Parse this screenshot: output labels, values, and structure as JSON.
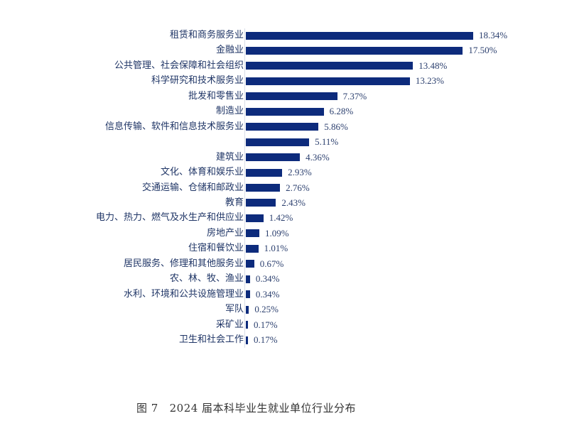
{
  "chart_data": {
    "type": "bar",
    "orientation": "horizontal",
    "title": "",
    "xlabel": "",
    "ylabel": "",
    "grid": false,
    "legend": null,
    "value_suffix": "%",
    "categories": [
      "租赁和商务服务业",
      "金融业",
      "公共管理、社会保障和社会组织",
      "科学研究和技术服务业",
      "批发和零售业",
      "制造业",
      "信息传输、软件和信息技术服务业",
      "",
      "建筑业",
      "文化、体育和娱乐业",
      "交通运输、仓储和邮政业",
      "教育",
      "电力、热力、燃气及水生产和供应业",
      "房地产业",
      "住宿和餐饮业",
      "居民服务、修理和其他服务业",
      "农、林、牧、渔业",
      "水利、环境和公共设施管理业",
      "军队",
      "采矿业",
      "卫生和社会工作"
    ],
    "values": [
      18.34,
      17.5,
      13.48,
      13.23,
      7.37,
      6.28,
      5.86,
      5.11,
      4.36,
      2.93,
      2.76,
      2.43,
      1.42,
      1.09,
      1.01,
      0.67,
      0.34,
      0.34,
      0.25,
      0.17,
      0.17
    ],
    "value_labels": [
      "18.34%",
      "17.50%",
      "13.48%",
      "13.23%",
      "7.37%",
      "6.28%",
      "5.86%",
      "5.11%",
      "4.36%",
      "2.93%",
      "2.76%",
      "2.43%",
      "1.42%",
      "1.09%",
      "1.01%",
      "0.67%",
      "0.34%",
      "0.34%",
      "0.25%",
      "0.17%",
      "0.17%"
    ],
    "bar_color": "#0d2b7c",
    "caption": "图 7   2024 届本科毕业生就业单位行业分布"
  }
}
